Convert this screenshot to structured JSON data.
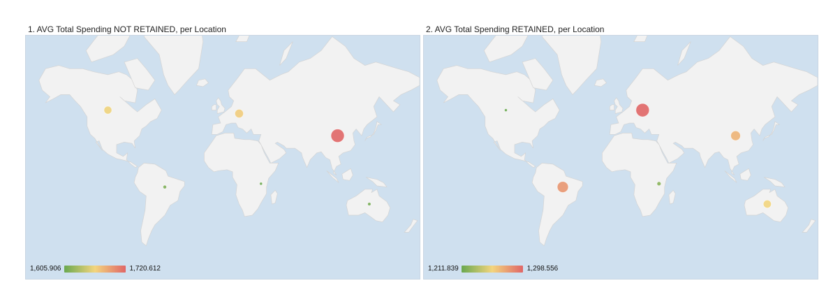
{
  "panels": [
    {
      "title": "1. AVG Total Spending NOT RETAINED, per Location",
      "legend": {
        "min_label": "1,605.906",
        "max_label": "1,720.612",
        "min": 1605.906,
        "max": 1720.612,
        "colors": [
          "#6aa84f",
          "#f3d57e",
          "#e06666"
        ]
      },
      "points": [
        {
          "location": "Canada",
          "lon": -105,
          "lat": 52,
          "value": 1661
        },
        {
          "location": "Europe",
          "lon": 15,
          "lat": 50,
          "value": 1668
        },
        {
          "location": "China",
          "lon": 105,
          "lat": 35,
          "value": 1720.612
        },
        {
          "location": "Brazil",
          "lon": -53,
          "lat": -10,
          "value": 1614
        },
        {
          "location": "Tanzania",
          "lon": 35,
          "lat": -7,
          "value": 1605.906
        },
        {
          "location": "Australia",
          "lon": 134,
          "lat": -25,
          "value": 1610
        }
      ]
    },
    {
      "title": "2. AVG Total Spending RETAINED, per Location",
      "legend": {
        "min_label": "1,211.839",
        "max_label": "1,298.556",
        "min": 1211.839,
        "max": 1298.556,
        "colors": [
          "#6aa84f",
          "#f3d57e",
          "#e06666"
        ]
      },
      "points": [
        {
          "location": "Canada",
          "lon": -105,
          "lat": 52,
          "value": 1211.839
        },
        {
          "location": "Europe",
          "lon": 20,
          "lat": 52,
          "value": 1298.556
        },
        {
          "location": "China",
          "lon": 105,
          "lat": 35,
          "value": 1268
        },
        {
          "location": "Brazil",
          "lon": -53,
          "lat": -10,
          "value": 1280
        },
        {
          "location": "Tanzania",
          "lon": 35,
          "lat": -7,
          "value": 1222
        },
        {
          "location": "Australia",
          "lon": 134,
          "lat": -25,
          "value": 1255
        }
      ]
    }
  ]
}
